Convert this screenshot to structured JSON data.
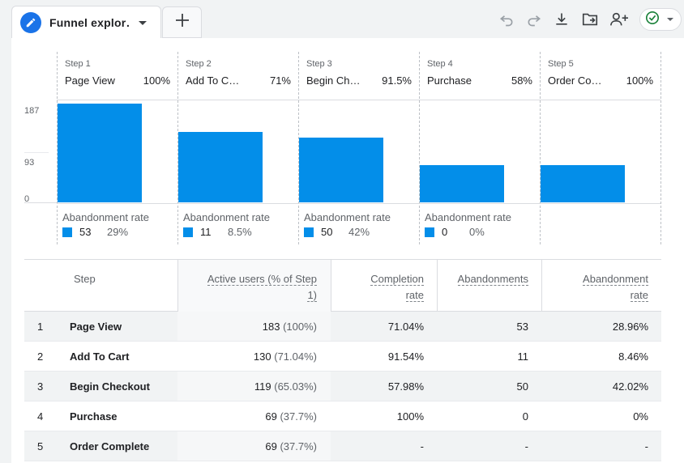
{
  "tab": {
    "title": "Funnel explor…"
  },
  "toolbar": {
    "add_tab": "+"
  },
  "colors": {
    "bar": "#038ee9",
    "accent": "#1a73e8",
    "ok": "#188038"
  },
  "chart_data": {
    "type": "bar",
    "y_ticks": [
      "187",
      "93",
      "0"
    ],
    "ylim": [
      0,
      187
    ],
    "steps": [
      {
        "step": "Step 1",
        "name": "Page View",
        "pct": "100%",
        "value": 183,
        "aband_label": "Abandonment rate",
        "aband_count": "53",
        "aband_rate": "29%"
      },
      {
        "step": "Step 2",
        "name": "Add To C…",
        "pct": "71%",
        "value": 130,
        "aband_label": "Abandonment rate",
        "aband_count": "11",
        "aband_rate": "8.5%"
      },
      {
        "step": "Step 3",
        "name": "Begin Ch…",
        "pct": "91.5%",
        "value": 119,
        "aband_label": "Abandonment rate",
        "aband_count": "50",
        "aband_rate": "42%"
      },
      {
        "step": "Step 4",
        "name": "Purchase",
        "pct": "58%",
        "value": 69,
        "aband_label": "Abandonment rate",
        "aband_count": "0",
        "aband_rate": "0%"
      },
      {
        "step": "Step 5",
        "name": "Order Co…",
        "pct": "100%",
        "value": 69
      }
    ]
  },
  "table": {
    "headers": {
      "step": "Step",
      "active_line1": "Active users (% of Step",
      "active_line2": "1)",
      "completion_line1": "Completion",
      "completion_line2": "rate",
      "abandonments": "Abandonments",
      "abrate_line1": "Abandonment",
      "abrate_line2": "rate"
    },
    "rows": [
      {
        "idx": "1",
        "step": "Page View",
        "users": "183",
        "users_pct": "(100%)",
        "completion": "71.04%",
        "abandonments": "53",
        "ab_rate": "28.96%"
      },
      {
        "idx": "2",
        "step": "Add To Cart",
        "users": "130",
        "users_pct": "(71.04%)",
        "completion": "91.54%",
        "abandonments": "11",
        "ab_rate": "8.46%"
      },
      {
        "idx": "3",
        "step": "Begin Checkout",
        "users": "119",
        "users_pct": "(65.03%)",
        "completion": "57.98%",
        "abandonments": "50",
        "ab_rate": "42.02%"
      },
      {
        "idx": "4",
        "step": "Purchase",
        "users": "69",
        "users_pct": "(37.7%)",
        "completion": "100%",
        "abandonments": "0",
        "ab_rate": "0%"
      },
      {
        "idx": "5",
        "step": "Order Complete",
        "users": "69",
        "users_pct": "(37.7%)",
        "completion": "-",
        "abandonments": "-",
        "ab_rate": "-"
      }
    ]
  }
}
